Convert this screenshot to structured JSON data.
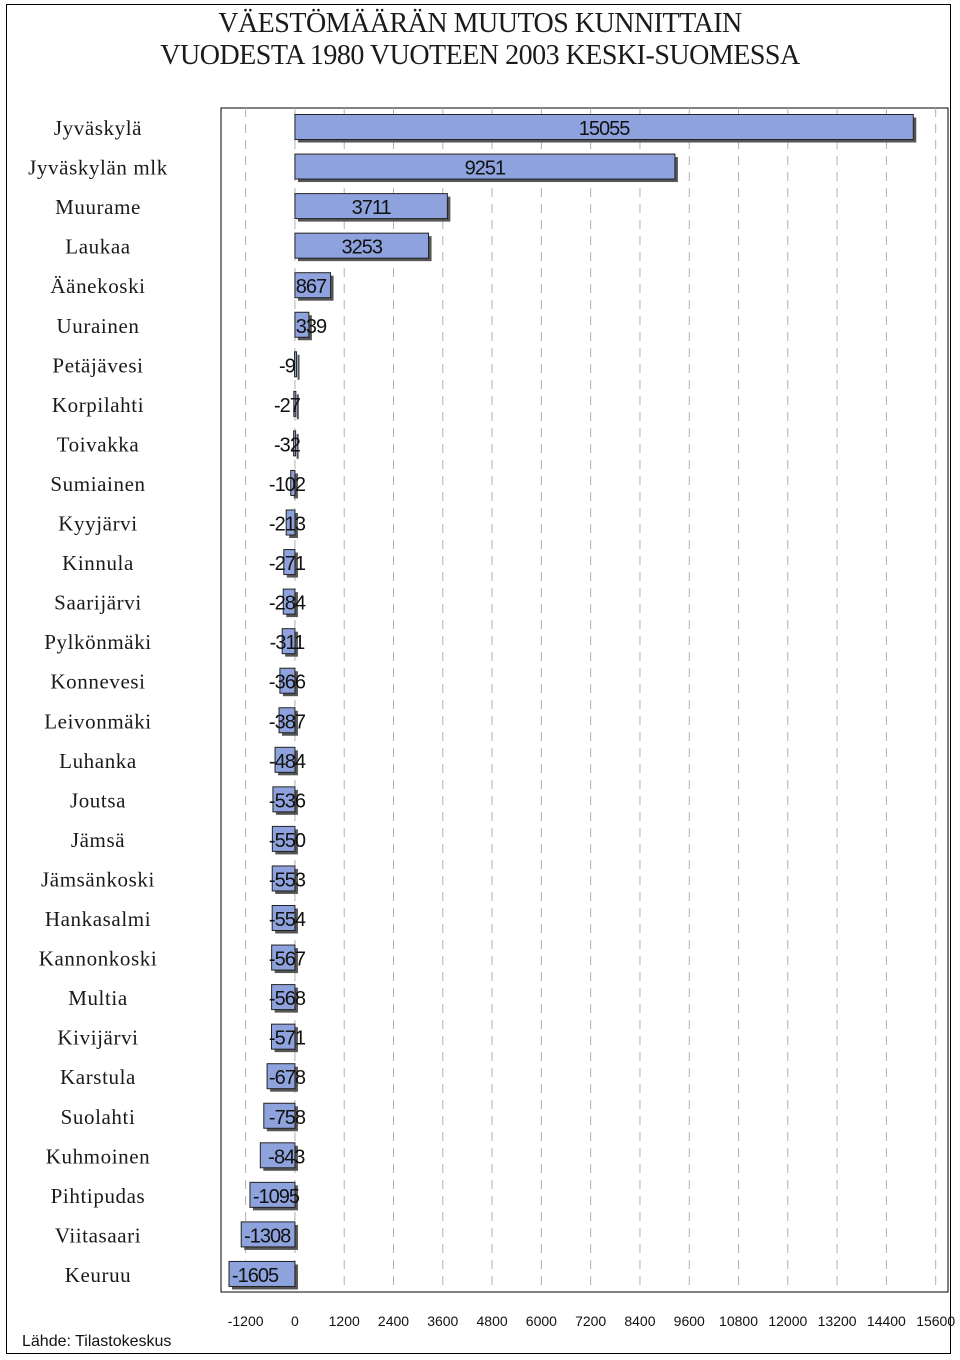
{
  "title_line1": "VÄESTÖMÄÄRÄN MUUTOS KUNNITTAIN",
  "title_line2": "VUODESTA 1980 VUOTEEN 2003 KESKI-SUOMESSA",
  "source": "Lähde: Tilastokeskus",
  "colors": {
    "bar": "#8ea3de",
    "bar_shadow": "#555555",
    "grid": "#b0b0b0"
  },
  "chart_data": {
    "type": "bar",
    "orientation": "horizontal",
    "title": "VÄESTÖMÄÄRÄN MUUTOS KUNNITTAIN VUODESTA 1980 VUOTEEN 2003 KESKI-SUOMESSA",
    "categories": [
      "Jyväskylä",
      "Jyväskylän mlk",
      "Muurame",
      "Laukaa",
      "Äänekoski",
      "Uurainen",
      "Petäjävesi",
      "Korpilahti",
      "Toivakka",
      "Sumiainen",
      "Kyyjärvi",
      "Kinnula",
      "Saarijärvi",
      "Pylkönmäki",
      "Konnevesi",
      "Leivonmäki",
      "Luhanka",
      "Joutsa",
      "Jämsä",
      "Jämsänkoski",
      "Hankasalmi",
      "Kannonkoski",
      "Multia",
      "Kivijärvi",
      "Karstula",
      "Suolahti",
      "Kuhmoinen",
      "Pihtipudas",
      "Viitasaari",
      "Keuruu"
    ],
    "values": [
      15055,
      9251,
      3711,
      3253,
      867,
      339,
      -9,
      -27,
      -32,
      -102,
      -213,
      -271,
      -284,
      -311,
      -366,
      -387,
      -484,
      -536,
      -550,
      -553,
      -554,
      -567,
      -568,
      -571,
      -678,
      -758,
      -843,
      -1095,
      -1308,
      -1605
    ],
    "data_labels": [
      "15055",
      "9251",
      "3711",
      "3253",
      "867",
      "339",
      "-9",
      "-27",
      "-32",
      "-102",
      "-213",
      "-271",
      "-284",
      "-311",
      "-366",
      "-387",
      "-484",
      "-536",
      "-550",
      "-553",
      "-554",
      "-567",
      "-568",
      "-571",
      "-678",
      "-758",
      "-843",
      "-1095",
      "-1308",
      "-1605"
    ],
    "x_ticks": [
      -1200,
      0,
      1200,
      2400,
      3600,
      4800,
      6000,
      7200,
      8400,
      9600,
      10800,
      12000,
      13200,
      14400,
      15600
    ],
    "x_tick_labels": [
      "-1200",
      "0",
      "1200",
      "2400",
      "3600",
      "4800",
      "6000",
      "7200",
      "8400",
      "9600",
      "10800",
      "12000",
      "13200",
      "14400",
      "15600"
    ],
    "xlim": [
      -1800,
      15900
    ],
    "xlabel": "",
    "ylabel": "",
    "grid": "vertical dashed"
  }
}
